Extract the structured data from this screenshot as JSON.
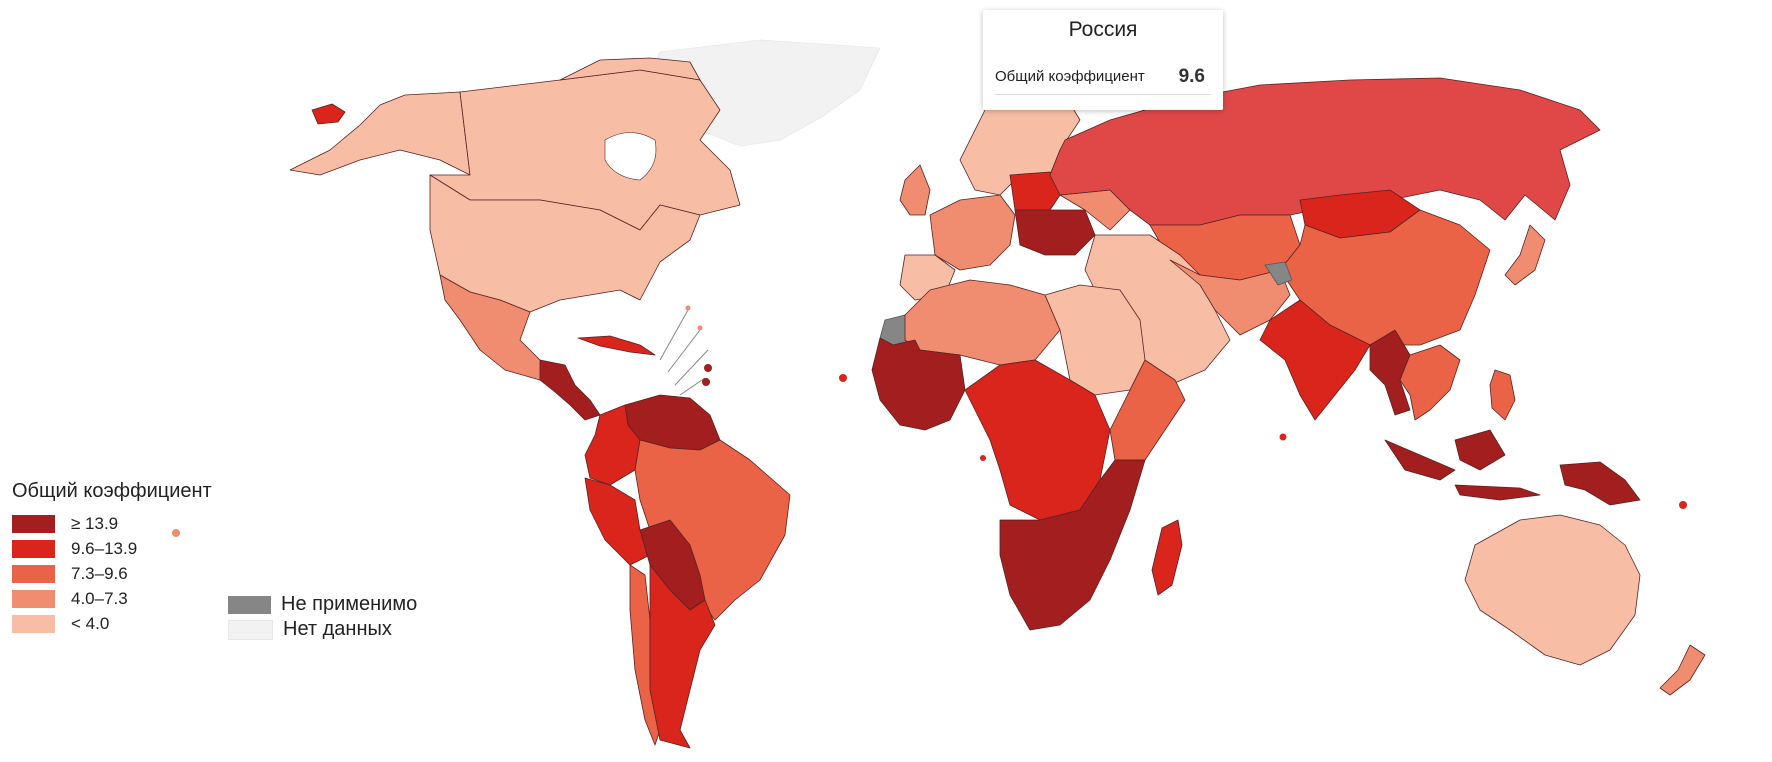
{
  "tooltip": {
    "country": "Россия",
    "metric_label": "Общий коэффициент",
    "value": "9.6"
  },
  "legend": {
    "title": "Общий коэффициент",
    "bins": [
      {
        "label": "≥ 13.9",
        "color": "#a31e1e"
      },
      {
        "label": "9.6–13.9",
        "color": "#d9251c"
      },
      {
        "label": "7.3–9.6",
        "color": "#eb6347"
      },
      {
        "label": "4.0–7.3",
        "color": "#f08c6f"
      },
      {
        "label": "< 4.0",
        "color": "#f7bda5"
      }
    ],
    "extra": [
      {
        "label": "Не применимо",
        "color": "#868686"
      },
      {
        "label": "Нет данных",
        "color": "#f2f2f2"
      }
    ]
  },
  "map_data": {
    "highlighted_country": "Россия",
    "regions": [
      {
        "name": "greenland",
        "bin": "no-data"
      },
      {
        "name": "canada",
        "bin": "< 4.0"
      },
      {
        "name": "usa",
        "bin": "< 4.0"
      },
      {
        "name": "mexico",
        "bin": "4.0–7.3"
      },
      {
        "name": "central-america",
        "bin": "≥ 13.9"
      },
      {
        "name": "cuba",
        "bin": "9.6–13.9"
      },
      {
        "name": "venezuela-guianas",
        "bin": "≥ 13.9"
      },
      {
        "name": "colombia-ecuador",
        "bin": "9.6–13.9"
      },
      {
        "name": "peru",
        "bin": "9.6–13.9"
      },
      {
        "name": "bolivia-paraguay",
        "bin": "≥ 13.9"
      },
      {
        "name": "brazil",
        "bin": "7.3–9.6"
      },
      {
        "name": "chile",
        "bin": "7.3–9.6"
      },
      {
        "name": "argentina",
        "bin": "9.6–13.9"
      },
      {
        "name": "alaska",
        "bin": "< 4.0"
      },
      {
        "name": "iceland",
        "bin": "9.6–13.9"
      },
      {
        "name": "scandinavia",
        "bin": "< 4.0"
      },
      {
        "name": "western-europe",
        "bin": "4.0–7.3"
      },
      {
        "name": "iberia",
        "bin": "< 4.0"
      },
      {
        "name": "poland",
        "bin": "9.6–13.9"
      },
      {
        "name": "eastern-europe",
        "bin": "≥ 13.9"
      },
      {
        "name": "russia",
        "bin": "9.6–13.9"
      },
      {
        "name": "kazakhstan",
        "bin": "7.3–9.6"
      },
      {
        "name": "mongolia",
        "bin": "9.6–13.9"
      },
      {
        "name": "china",
        "bin": "7.3–9.6"
      },
      {
        "name": "middle-east",
        "bin": "< 4.0"
      },
      {
        "name": "iran-afghanistan",
        "bin": "4.0–7.3"
      },
      {
        "name": "kashmir",
        "bin": "Не применимо"
      },
      {
        "name": "india",
        "bin": "9.6–13.9"
      },
      {
        "name": "myanmar",
        "bin": "≥ 13.9"
      },
      {
        "name": "indochina",
        "bin": "7.3–9.6"
      },
      {
        "name": "japan",
        "bin": "4.0–7.3"
      },
      {
        "name": "philippines",
        "bin": "7.3–9.6"
      },
      {
        "name": "indonesia",
        "bin": "≥ 13.9"
      },
      {
        "name": "papua",
        "bin": "≥ 13.9"
      },
      {
        "name": "australia",
        "bin": "< 4.0"
      },
      {
        "name": "new-zealand",
        "bin": "4.0–7.3"
      },
      {
        "name": "western-sahara",
        "bin": "Не применимо"
      },
      {
        "name": "north-africa",
        "bin": "4.0–7.3"
      },
      {
        "name": "egypt-libya",
        "bin": "< 4.0"
      },
      {
        "name": "west-africa",
        "bin": "≥ 13.9"
      },
      {
        "name": "central-africa",
        "bin": "9.6–13.9"
      },
      {
        "name": "east-africa",
        "bin": "7.3–9.6"
      },
      {
        "name": "southern-africa",
        "bin": "≥ 13.9"
      },
      {
        "name": "madagascar",
        "bin": "9.6–13.9"
      }
    ]
  }
}
